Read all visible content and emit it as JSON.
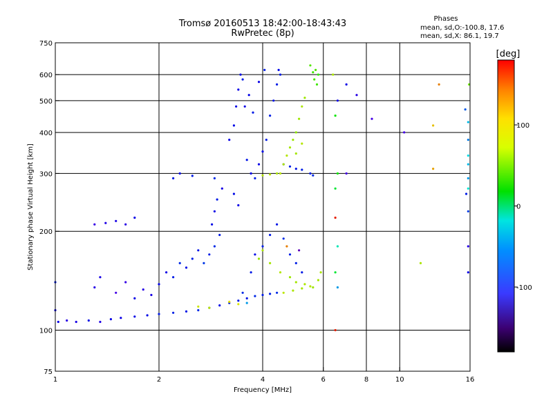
{
  "chart_data": {
    "type": "scatter",
    "title": "Tromsø 20160513 18:42:00-18:43:43",
    "subtitle": "RwPretec (8p)",
    "legend_text": {
      "heading": "Phases",
      "line1": "mean, sd,O:-100.8, 17.6",
      "line2": "mean, sd,X:  86.1, 19.7"
    },
    "xlabel": "Frequency [MHz]",
    "ylabel": "Stationary phase Virtual Height [km]",
    "x_scale": "log",
    "y_scale": "log",
    "xlim": [
      1,
      16
    ],
    "ylim": [
      75,
      750
    ],
    "x_ticks": [
      {
        "value": 1,
        "label": "1"
      },
      {
        "value": 2,
        "label": "2"
      },
      {
        "value": 4,
        "label": "4"
      },
      {
        "value": 6,
        "label": "6"
      },
      {
        "value": 8,
        "label": "8"
      },
      {
        "value": 10,
        "label": "10"
      },
      {
        "value": 16,
        "label": "16"
      }
    ],
    "x_grid": [
      2,
      4,
      6,
      8,
      10,
      16
    ],
    "y_ticks": [
      {
        "value": 75,
        "label": "75"
      },
      {
        "value": 100,
        "label": "100"
      },
      {
        "value": 200,
        "label": "200"
      },
      {
        "value": 300,
        "label": "300"
      },
      {
        "value": 400,
        "label": "400"
      },
      {
        "value": 500,
        "label": "500"
      },
      {
        "value": 600,
        "label": "600"
      },
      {
        "value": 750,
        "label": "750"
      }
    ],
    "y_grid": [
      100,
      200,
      300,
      400,
      500,
      600
    ],
    "colorbar": {
      "title": "[deg]",
      "range": [
        -180,
        180
      ],
      "ticks": [
        {
          "value": 100,
          "label": "100"
        },
        {
          "value": 0,
          "label": "0"
        },
        {
          "value": -100,
          "label": "-100"
        }
      ]
    },
    "grid": true,
    "points": [
      [
        1.02,
        106,
        -110
      ],
      [
        1.08,
        107,
        -120
      ],
      [
        1.15,
        106,
        -115
      ],
      [
        1.25,
        107,
        -105
      ],
      [
        1.35,
        106,
        -118
      ],
      [
        1.45,
        108,
        -110
      ],
      [
        1.55,
        109,
        -112
      ],
      [
        1.7,
        110,
        -108
      ],
      [
        1.85,
        111,
        -105
      ],
      [
        2.0,
        112,
        -100
      ],
      [
        2.2,
        113,
        -98
      ],
      [
        2.4,
        114,
        -102
      ],
      [
        2.6,
        115,
        -95
      ],
      [
        2.8,
        117,
        -100
      ],
      [
        3.0,
        119,
        -105
      ],
      [
        3.2,
        121,
        -98
      ],
      [
        3.4,
        123,
        -100
      ],
      [
        3.6,
        125,
        -102
      ],
      [
        3.8,
        127,
        -96
      ],
      [
        4.0,
        128,
        -100
      ],
      [
        4.2,
        129,
        -98
      ],
      [
        4.4,
        130,
        -95
      ],
      [
        1.3,
        135,
        -120
      ],
      [
        1.35,
        145,
        -115
      ],
      [
        1.5,
        130,
        -130
      ],
      [
        1.6,
        140,
        -125
      ],
      [
        1.7,
        125,
        -110
      ],
      [
        1.8,
        133,
        -120
      ],
      [
        1.9,
        128,
        -115
      ],
      [
        2.0,
        138,
        -108
      ],
      [
        2.1,
        150,
        -112
      ],
      [
        2.2,
        145,
        -100
      ],
      [
        2.3,
        160,
        -95
      ],
      [
        2.4,
        155,
        -105
      ],
      [
        2.5,
        165,
        -98
      ],
      [
        2.6,
        175,
        -102
      ],
      [
        2.7,
        160,
        -90
      ],
      [
        2.8,
        170,
        -100
      ],
      [
        2.9,
        180,
        -95
      ],
      [
        3.0,
        195,
        -100
      ],
      [
        2.85,
        210,
        -105
      ],
      [
        2.9,
        230,
        -110
      ],
      [
        2.95,
        250,
        -100
      ],
      [
        3.05,
        270,
        -115
      ],
      [
        2.9,
        290,
        -95
      ],
      [
        2.5,
        295,
        -100
      ],
      [
        2.3,
        300,
        -105
      ],
      [
        2.2,
        290,
        -100
      ],
      [
        1.6,
        210,
        -120
      ],
      [
        1.7,
        220,
        -110
      ],
      [
        1.5,
        215,
        -115
      ],
      [
        1.3,
        210,
        -125
      ],
      [
        1.4,
        212,
        -118
      ],
      [
        1.0,
        140,
        -100
      ],
      [
        1.0,
        115,
        -110
      ],
      [
        3.2,
        380,
        -110
      ],
      [
        3.3,
        420,
        -105
      ],
      [
        3.35,
        480,
        -108
      ],
      [
        3.4,
        540,
        -110
      ],
      [
        3.5,
        580,
        -100
      ],
      [
        3.45,
        600,
        -105
      ],
      [
        3.6,
        330,
        -102
      ],
      [
        3.7,
        300,
        -108
      ],
      [
        3.8,
        290,
        -100
      ],
      [
        3.9,
        320,
        -110
      ],
      [
        4.0,
        350,
        -105
      ],
      [
        4.1,
        380,
        -100
      ],
      [
        4.2,
        450,
        -98
      ],
      [
        4.3,
        500,
        -102
      ],
      [
        4.4,
        560,
        -100
      ],
      [
        4.45,
        620,
        -105
      ],
      [
        4.5,
        600,
        -100
      ],
      [
        3.55,
        480,
        -112
      ],
      [
        3.65,
        520,
        -108
      ],
      [
        3.75,
        460,
        -100
      ],
      [
        4.6,
        320,
        -105
      ],
      [
        4.8,
        315,
        -100
      ],
      [
        5.0,
        310,
        -102
      ],
      [
        5.2,
        308,
        -98
      ],
      [
        5.5,
        300,
        -100
      ],
      [
        5.6,
        296,
        -95
      ],
      [
        3.9,
        570,
        -110
      ],
      [
        4.05,
        620,
        -100
      ],
      [
        3.3,
        260,
        -105
      ],
      [
        3.4,
        240,
        -110
      ],
      [
        4.5,
        300,
        95
      ],
      [
        4.6,
        320,
        90
      ],
      [
        4.7,
        340,
        92
      ],
      [
        4.8,
        360,
        88
      ],
      [
        4.9,
        380,
        85
      ],
      [
        5.0,
        400,
        80
      ],
      [
        5.1,
        440,
        85
      ],
      [
        5.2,
        480,
        90
      ],
      [
        5.3,
        510,
        85
      ],
      [
        5.2,
        370,
        92
      ],
      [
        5.0,
        345,
        88
      ],
      [
        4.4,
        300,
        90
      ],
      [
        4.2,
        298,
        95
      ],
      [
        4.0,
        296,
        92
      ],
      [
        5.6,
        610,
        55
      ],
      [
        5.7,
        620,
        60
      ],
      [
        5.65,
        580,
        58
      ],
      [
        5.8,
        600,
        50
      ],
      [
        5.5,
        640,
        62
      ],
      [
        5.75,
        560,
        55
      ],
      [
        3.5,
        130,
        -95
      ],
      [
        3.7,
        150,
        -100
      ],
      [
        3.8,
        170,
        -105
      ],
      [
        4.0,
        180,
        -98
      ],
      [
        4.2,
        195,
        -100
      ],
      [
        4.4,
        210,
        -102
      ],
      [
        4.6,
        190,
        -95
      ],
      [
        4.8,
        170,
        -100
      ],
      [
        5.0,
        160,
        -98
      ],
      [
        5.2,
        150,
        -100
      ],
      [
        3.9,
        165,
        85
      ],
      [
        4.0,
        175,
        90
      ],
      [
        4.2,
        160,
        88
      ],
      [
        4.5,
        150,
        92
      ],
      [
        4.8,
        145,
        85
      ],
      [
        5.0,
        140,
        88
      ],
      [
        5.3,
        138,
        90
      ],
      [
        5.6,
        135,
        85
      ],
      [
        5.8,
        142,
        88
      ],
      [
        5.9,
        150,
        90
      ],
      [
        4.6,
        130,
        95
      ],
      [
        4.9,
        132,
        90
      ],
      [
        5.2,
        134,
        88
      ],
      [
        5.5,
        136,
        92
      ],
      [
        3.2,
        122,
        110
      ],
      [
        3.4,
        120,
        105
      ],
      [
        2.6,
        118,
        100
      ],
      [
        2.8,
        117,
        95
      ],
      [
        3.6,
        121,
        -60
      ],
      [
        4.7,
        180,
        140
      ],
      [
        5.1,
        175,
        -150
      ],
      [
        6.4,
        600,
        90
      ],
      [
        6.5,
        450,
        40
      ],
      [
        6.6,
        300,
        40
      ],
      [
        6.6,
        500,
        -110
      ],
      [
        6.5,
        270,
        20
      ],
      [
        6.5,
        220,
        170
      ],
      [
        6.6,
        180,
        -20
      ],
      [
        6.5,
        150,
        20
      ],
      [
        6.6,
        135,
        -60
      ],
      [
        6.5,
        100,
        170
      ],
      [
        7.0,
        300,
        -130
      ],
      [
        7.5,
        520,
        -120
      ],
      [
        7.0,
        560,
        -110
      ],
      [
        8.3,
        440,
        -130
      ],
      [
        10.3,
        400,
        -130
      ],
      [
        11.5,
        160,
        90
      ],
      [
        12.5,
        310,
        130
      ],
      [
        12.5,
        420,
        120
      ],
      [
        13.0,
        560,
        140
      ],
      [
        15.5,
        470,
        -80
      ],
      [
        15.8,
        430,
        -50
      ],
      [
        15.8,
        380,
        -70
      ],
      [
        15.8,
        340,
        -40
      ],
      [
        15.8,
        290,
        -60
      ],
      [
        15.6,
        260,
        -100
      ],
      [
        15.8,
        230,
        -90
      ],
      [
        15.8,
        180,
        -120
      ],
      [
        15.8,
        150,
        -110
      ],
      [
        15.9,
        560,
        70
      ],
      [
        15.8,
        320,
        -50
      ],
      [
        15.8,
        270,
        -30
      ]
    ]
  }
}
